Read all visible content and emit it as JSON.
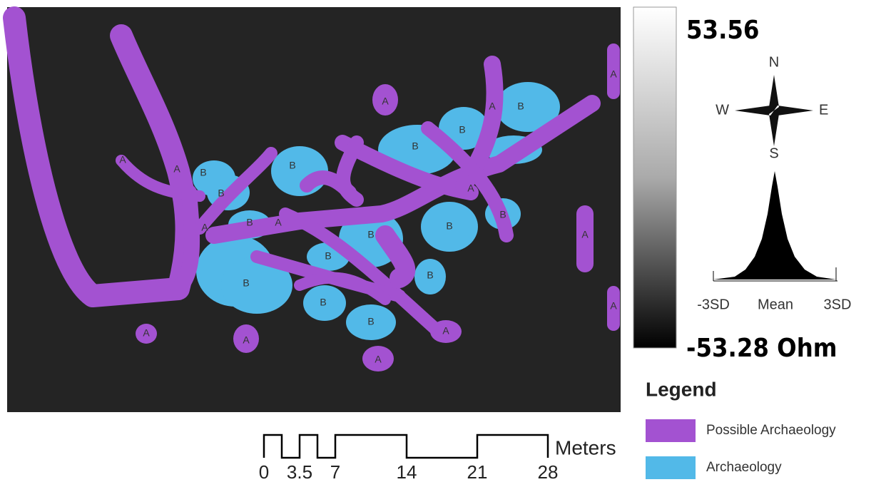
{
  "colorbar": {
    "max": "53.56",
    "min": "-53.28 Ohm"
  },
  "compass": {
    "n": "N",
    "e": "E",
    "s": "S",
    "w": "W"
  },
  "histogram": {
    "labels": [
      "-3SD",
      "Mean",
      "3SD"
    ]
  },
  "legend": {
    "title": "Legend",
    "items": [
      {
        "label": "Possible Archaeology",
        "color": "#a352d1"
      },
      {
        "label": "Archaeology",
        "color": "#52b9e8"
      }
    ]
  },
  "scale_bar": {
    "ticks": [
      "0",
      "3.5",
      "7",
      "14",
      "21",
      "28"
    ],
    "unit": "Meters"
  },
  "features": [
    "A",
    "A",
    "A",
    "A",
    "A",
    "A",
    "A",
    "A",
    "A",
    "A",
    "A",
    "A",
    "A",
    "A",
    "B",
    "B",
    "B",
    "B",
    "B",
    "B",
    "B",
    "B",
    "B",
    "B",
    "B",
    "B",
    "B",
    "B",
    "B"
  ]
}
